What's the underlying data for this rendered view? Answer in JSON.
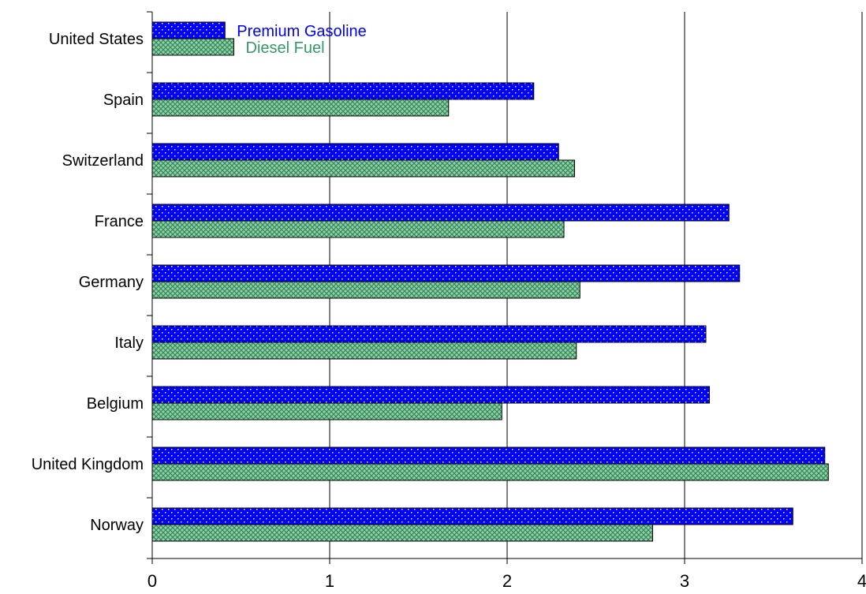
{
  "chart_data": {
    "type": "bar",
    "orientation": "horizontal",
    "categories": [
      "United States",
      "Spain",
      "Switzerland",
      "France",
      "Germany",
      "Italy",
      "Belgium",
      "United Kingdom",
      "Norway"
    ],
    "series": [
      {
        "name": "Premium Gasoline",
        "color": "#0000ff",
        "values": [
          0.41,
          2.15,
          2.29,
          3.25,
          3.31,
          3.12,
          3.14,
          3.79,
          3.61
        ]
      },
      {
        "name": "Diesel Fuel",
        "color": "#339966",
        "values": [
          0.46,
          1.67,
          2.38,
          2.32,
          2.41,
          2.39,
          1.97,
          3.81,
          2.82
        ]
      }
    ],
    "title": "",
    "xlabel": "",
    "ylabel": "",
    "xlim": [
      0,
      4
    ],
    "xticks": [
      "0",
      "1",
      "2",
      "3",
      "4"
    ],
    "grid": "vertical",
    "legend": "inline-top"
  }
}
